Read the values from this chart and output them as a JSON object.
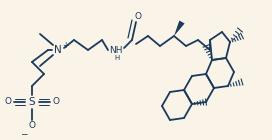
{
  "background_color": "#faf4e8",
  "line_color": "#1a3a5c",
  "line_width": 1.3,
  "font_size": 6.5,
  "figsize": [
    2.72,
    1.4
  ],
  "dpi": 100,
  "xlim": [
    0,
    272
  ],
  "ylim": [
    0,
    140
  ]
}
